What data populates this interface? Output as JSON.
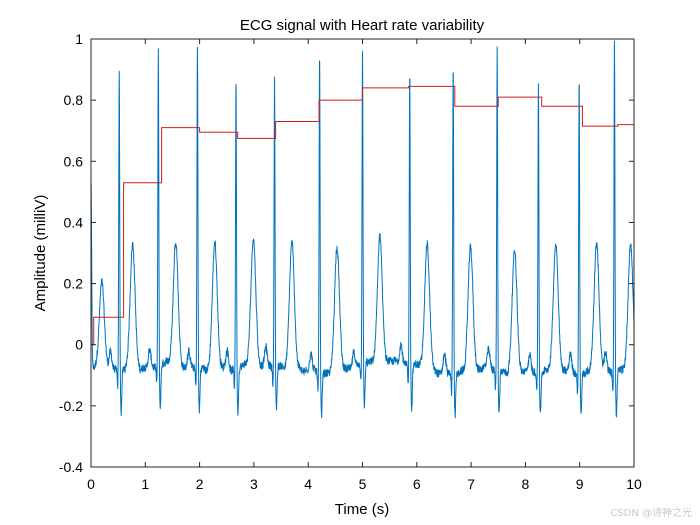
{
  "chart_data": {
    "type": "line",
    "title": "ECG signal with Heart rate variability",
    "xlabel": "Time (s)",
    "ylabel": "Amplitude (milliV)",
    "xlim": [
      0,
      10
    ],
    "ylim": [
      -0.4,
      1
    ],
    "xticks": [
      0,
      1,
      2,
      3,
      4,
      5,
      6,
      7,
      8,
      9,
      10
    ],
    "xtick_labels": [
      "0",
      "1",
      "2",
      "3",
      "4",
      "5",
      "6",
      "7",
      "8",
      "9",
      "10"
    ],
    "yticks": [
      -0.4,
      -0.2,
      0,
      0.2,
      0.4,
      0.6,
      0.8,
      1
    ],
    "ytick_labels": [
      "-0.4",
      "-0.2",
      "0",
      "0.2",
      "0.4",
      "0.6",
      "0.8",
      "1"
    ],
    "grid": false,
    "series": [
      {
        "name": "ECG",
        "color": "#0072BD",
        "style": "line",
        "r_peaks": [
          {
            "t": 0.52,
            "amp": 0.9
          },
          {
            "t": 1.24,
            "amp": 0.95
          },
          {
            "t": 1.96,
            "amp": 0.98
          },
          {
            "t": 2.67,
            "amp": 0.87
          },
          {
            "t": 3.38,
            "amp": 0.86
          },
          {
            "t": 4.21,
            "amp": 0.96
          },
          {
            "t": 5.0,
            "amp": 0.94
          },
          {
            "t": 5.87,
            "amp": 0.9
          },
          {
            "t": 6.67,
            "amp": 0.94
          },
          {
            "t": 7.48,
            "amp": 0.97
          },
          {
            "t": 8.24,
            "amp": 0.87
          },
          {
            "t": 8.99,
            "amp": 0.88
          },
          {
            "t": 9.64,
            "amp": 1.0
          }
        ],
        "t_wave_amp": 0.33,
        "s_wave_amp": -0.22,
        "baseline": -0.08
      },
      {
        "name": "Heart rate variability",
        "color": "#D95319",
        "style": "step",
        "t": [
          0.0,
          0.05,
          0.6,
          1.3,
          2.0,
          2.7,
          3.4,
          4.2,
          5.0,
          5.85,
          6.7,
          7.5,
          8.3,
          9.05,
          9.7,
          10.0
        ],
        "values": [
          0.0,
          0.09,
          0.53,
          0.71,
          0.695,
          0.675,
          0.73,
          0.8,
          0.84,
          0.845,
          0.78,
          0.81,
          0.78,
          0.715,
          0.72,
          0.72
        ]
      }
    ]
  },
  "watermark": "CSDN @诗神之光"
}
